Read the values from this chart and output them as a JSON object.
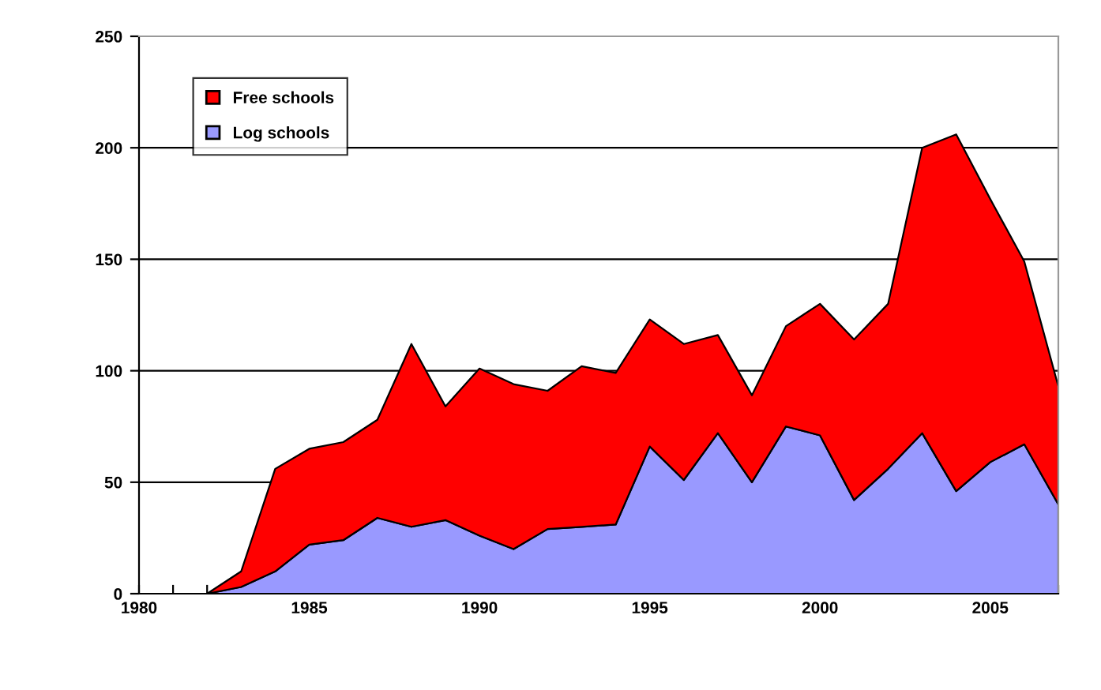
{
  "chart_data": {
    "type": "area",
    "stacked": true,
    "x": [
      1980,
      1981,
      1982,
      1983,
      1984,
      1985,
      1986,
      1987,
      1988,
      1989,
      1990,
      1991,
      1992,
      1993,
      1994,
      1995,
      1996,
      1997,
      1998,
      1999,
      2000,
      2001,
      2002,
      2003,
      2004,
      2005,
      2006,
      2007
    ],
    "series": [
      {
        "name": "Log schools",
        "color": "#9999ff",
        "values": [
          0,
          0,
          0,
          3,
          10,
          22,
          24,
          34,
          30,
          33,
          26,
          20,
          29,
          30,
          31,
          66,
          51,
          72,
          50,
          75,
          71,
          42,
          56,
          72,
          46,
          59,
          67,
          40
        ]
      },
      {
        "name": "Free schools",
        "color": "#ff0000",
        "values": [
          0,
          0,
          0,
          7,
          46,
          43,
          44,
          44,
          82,
          51,
          75,
          74,
          62,
          72,
          68,
          57,
          61,
          44,
          39,
          45,
          59,
          72,
          74,
          128,
          160,
          118,
          82,
          53
        ]
      }
    ],
    "xlim": [
      1980,
      2007
    ],
    "xticks": [
      1980,
      {
        "value": 1981,
        "label": null
      },
      {
        "value": 1982,
        "label": null
      },
      {
        "value": 1983,
        "label": null
      },
      {
        "value": 1984,
        "label": null
      },
      1985,
      {
        "value": 1986,
        "label": null
      },
      {
        "value": 1987,
        "label": null
      },
      {
        "value": 1988,
        "label": null
      },
      {
        "value": 1989,
        "label": null
      },
      1990,
      {
        "value": 1991,
        "label": null
      },
      {
        "value": 1992,
        "label": null
      },
      {
        "value": 1993,
        "label": null
      },
      {
        "value": 1994,
        "label": null
      },
      1995,
      {
        "value": 1996,
        "label": null
      },
      {
        "value": 1997,
        "label": null
      },
      {
        "value": 1998,
        "label": null
      },
      {
        "value": 1999,
        "label": null
      },
      2000,
      {
        "value": 2001,
        "label": null
      },
      {
        "value": 2002,
        "label": null
      },
      {
        "value": 2003,
        "label": null
      },
      {
        "value": 2004,
        "label": null
      },
      2005,
      {
        "value": 2006,
        "label": null
      },
      {
        "value": 2007,
        "label": null
      }
    ],
    "ylim": [
      0,
      250
    ],
    "yticks": [
      0,
      50,
      100,
      150,
      200,
      250
    ],
    "grid": "y",
    "legend": "top left"
  }
}
